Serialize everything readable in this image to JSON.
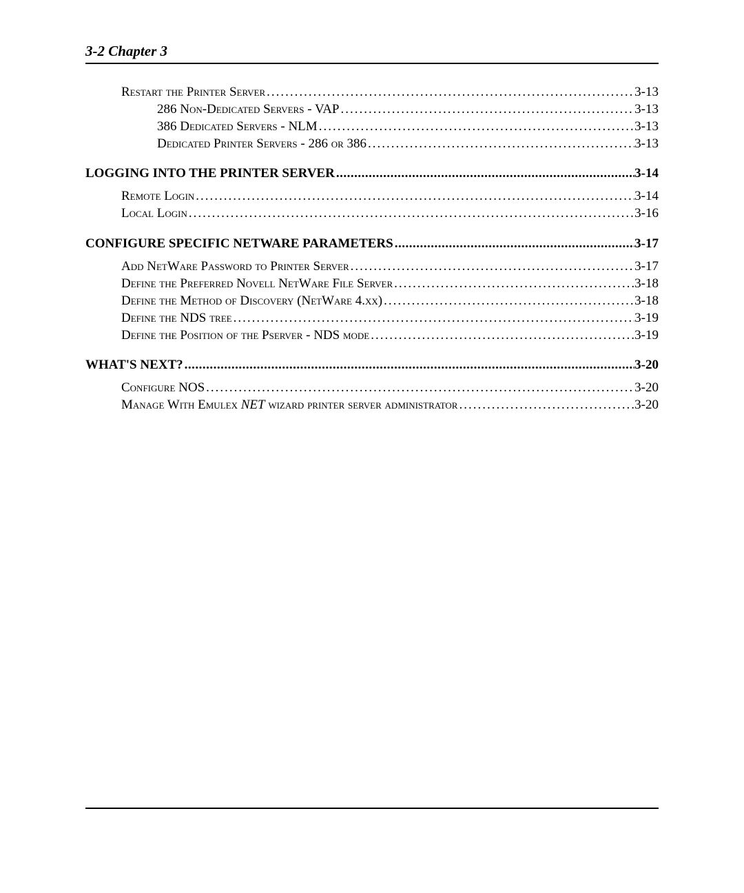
{
  "header": {
    "text": "3-2  Chapter 3"
  },
  "toc": {
    "lines": [
      {
        "level": 2,
        "label": "Restart the Printer Server",
        "page": "3-13",
        "smallcaps": true
      },
      {
        "level": 3,
        "label": "286 Non-Dedicated Servers - VAP",
        "page": "3-13",
        "smallcaps": true
      },
      {
        "level": 3,
        "label": "386 Dedicated Servers - NLM",
        "page": "3-13",
        "smallcaps": true
      },
      {
        "level": 3,
        "label": "Dedicated Printer Servers - 286 or 386",
        "page": "3-13",
        "smallcaps": true
      },
      {
        "level": 0,
        "spacer": "big"
      },
      {
        "level": 1,
        "label": "LOGGING INTO THE PRINTER SERVER",
        "page": "3-14"
      },
      {
        "level": 0,
        "spacer": "small"
      },
      {
        "level": 2,
        "label": "Remote Login",
        "page": "3-14",
        "smallcaps": true
      },
      {
        "level": 2,
        "label": "Local Login",
        "page": "3-16",
        "smallcaps": true
      },
      {
        "level": 0,
        "spacer": "big"
      },
      {
        "level": 1,
        "label": "CONFIGURE SPECIFIC NETWARE PARAMETERS",
        "page": "3-17"
      },
      {
        "level": 0,
        "spacer": "small"
      },
      {
        "level": 2,
        "label": "Add NetWare Password to Printer Server",
        "page": "3-17",
        "smallcaps": true
      },
      {
        "level": 2,
        "label": "Define the Preferred Novell NetWare File Server",
        "page": "3-18",
        "smallcaps": true
      },
      {
        "level": 2,
        "label": "Define the Method of Discovery (NetWare 4.xx)",
        "page": "3-18",
        "smallcaps": true
      },
      {
        "level": 2,
        "label": "Define the NDS tree",
        "page": "3-19",
        "smallcaps": true
      },
      {
        "level": 2,
        "label": "Define the Position of the Pserver - NDS mode",
        "page": "3-19",
        "smallcaps": true
      },
      {
        "level": 0,
        "spacer": "big"
      },
      {
        "level": 1,
        "label": "WHAT'S NEXT?",
        "page": "3-20"
      },
      {
        "level": 0,
        "spacer": "small"
      },
      {
        "level": 2,
        "label": "Configure NOS",
        "page": "3-20",
        "smallcaps": true
      },
      {
        "level": 2,
        "label_parts": [
          {
            "text": "Manage With Emulex ",
            "smallcaps": true
          },
          {
            "text": "NET",
            "italic": true
          },
          {
            "text": " wizard printer server administrator",
            "smallcaps": true
          }
        ],
        "page": "3-20"
      }
    ]
  }
}
